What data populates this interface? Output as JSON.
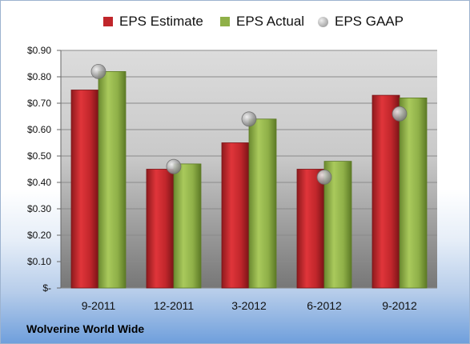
{
  "chart_data": {
    "type": "bar",
    "title": "",
    "xlabel": "",
    "ylabel": "",
    "categories": [
      "9-2011",
      "12-2011",
      "3-2012",
      "6-2012",
      "9-2012"
    ],
    "ylim": [
      0,
      0.9
    ],
    "yticks": [
      0,
      0.1,
      0.2,
      0.3,
      0.4,
      0.5,
      0.6,
      0.7,
      0.8,
      0.9
    ],
    "ytick_labels": [
      "$-",
      "$0.10",
      "$0.20",
      "$0.30",
      "$0.40",
      "$0.50",
      "$0.60",
      "$0.70",
      "$0.80",
      "$0.90"
    ],
    "grid": true,
    "legend_position": "top",
    "series": [
      {
        "name": "EPS Estimate",
        "kind": "bar",
        "color": "#c0262b",
        "values": [
          0.75,
          0.45,
          0.55,
          0.45,
          0.73
        ]
      },
      {
        "name": "EPS Actual",
        "kind": "bar",
        "color": "#8fb048",
        "values": [
          0.82,
          0.47,
          0.64,
          0.48,
          0.72
        ]
      },
      {
        "name": "EPS GAAP",
        "kind": "marker",
        "color": "#a6a6a6",
        "values": [
          0.82,
          0.46,
          0.64,
          0.42,
          0.66
        ]
      }
    ]
  },
  "company_name": "Wolverine World Wide"
}
